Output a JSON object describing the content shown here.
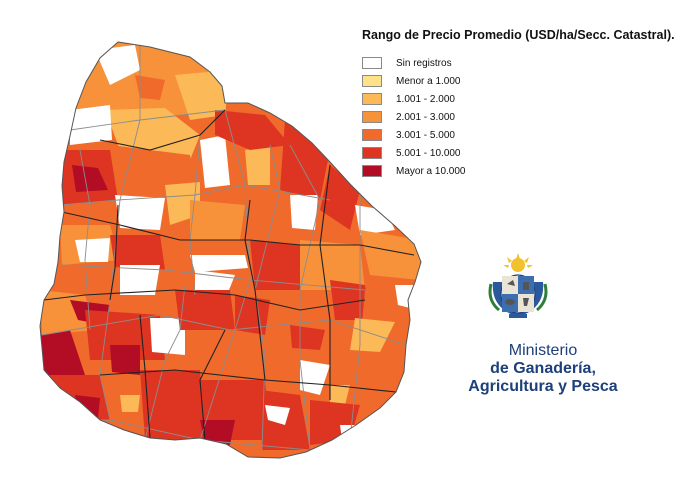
{
  "legend": {
    "title": "Rango de Precio Promedio (USD/ha/Secc. Catastral).",
    "items": [
      {
        "label": "Sin registros",
        "color": "#ffffff"
      },
      {
        "label": "Menor a 1.000",
        "color": "#fde28a"
      },
      {
        "label": "1.001 - 2.000",
        "color": "#fbb957"
      },
      {
        "label": "2.001 - 3.000",
        "color": "#f7923a"
      },
      {
        "label": "3.001 - 5.000",
        "color": "#ef6a2b"
      },
      {
        "label": "5.001 - 10.000",
        "color": "#de3523"
      },
      {
        "label": "Mayor a 10.000",
        "color": "#b30c25"
      }
    ]
  },
  "ministry": {
    "line1": "Ministerio",
    "line2": "de Ganadería,",
    "line3": "Agricultura y Pesca",
    "color": "#1d3f7a"
  },
  "emblem": {
    "icon": "uruguay-coat-of-arms-icon"
  }
}
